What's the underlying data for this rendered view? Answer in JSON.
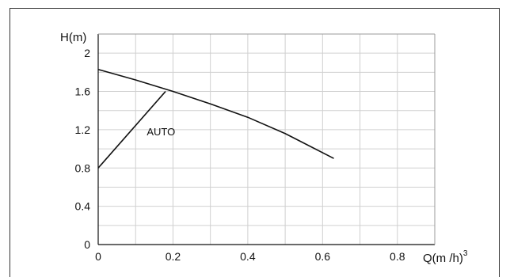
{
  "chart_data": {
    "type": "line",
    "title": "",
    "xlabel": "Q(m /h)",
    "xlabel_superscript": "3",
    "ylabel": "H(m)",
    "xlim": [
      0,
      0.9
    ],
    "ylim": [
      0,
      2.2
    ],
    "x_ticks": [
      "0",
      "0.2",
      "0.4",
      "0.6",
      "0.8"
    ],
    "y_ticks": [
      "0",
      "0.4",
      "0.8",
      "1.2",
      "1.6",
      "2"
    ],
    "grid": true,
    "series": [
      {
        "x": [
          0,
          0.1,
          0.2,
          0.3,
          0.4,
          0.5,
          0.63
        ],
        "y": [
          1.83,
          1.72,
          1.6,
          1.47,
          1.33,
          1.16,
          0.9
        ],
        "color": "#111111"
      },
      {
        "name": "AUTO",
        "x": [
          0,
          0.18
        ],
        "y": [
          0.8,
          1.6
        ],
        "color": "#111111"
      }
    ],
    "annotations": [
      {
        "text": "AUTO",
        "x": 0.13,
        "y": 1.14
      }
    ]
  }
}
